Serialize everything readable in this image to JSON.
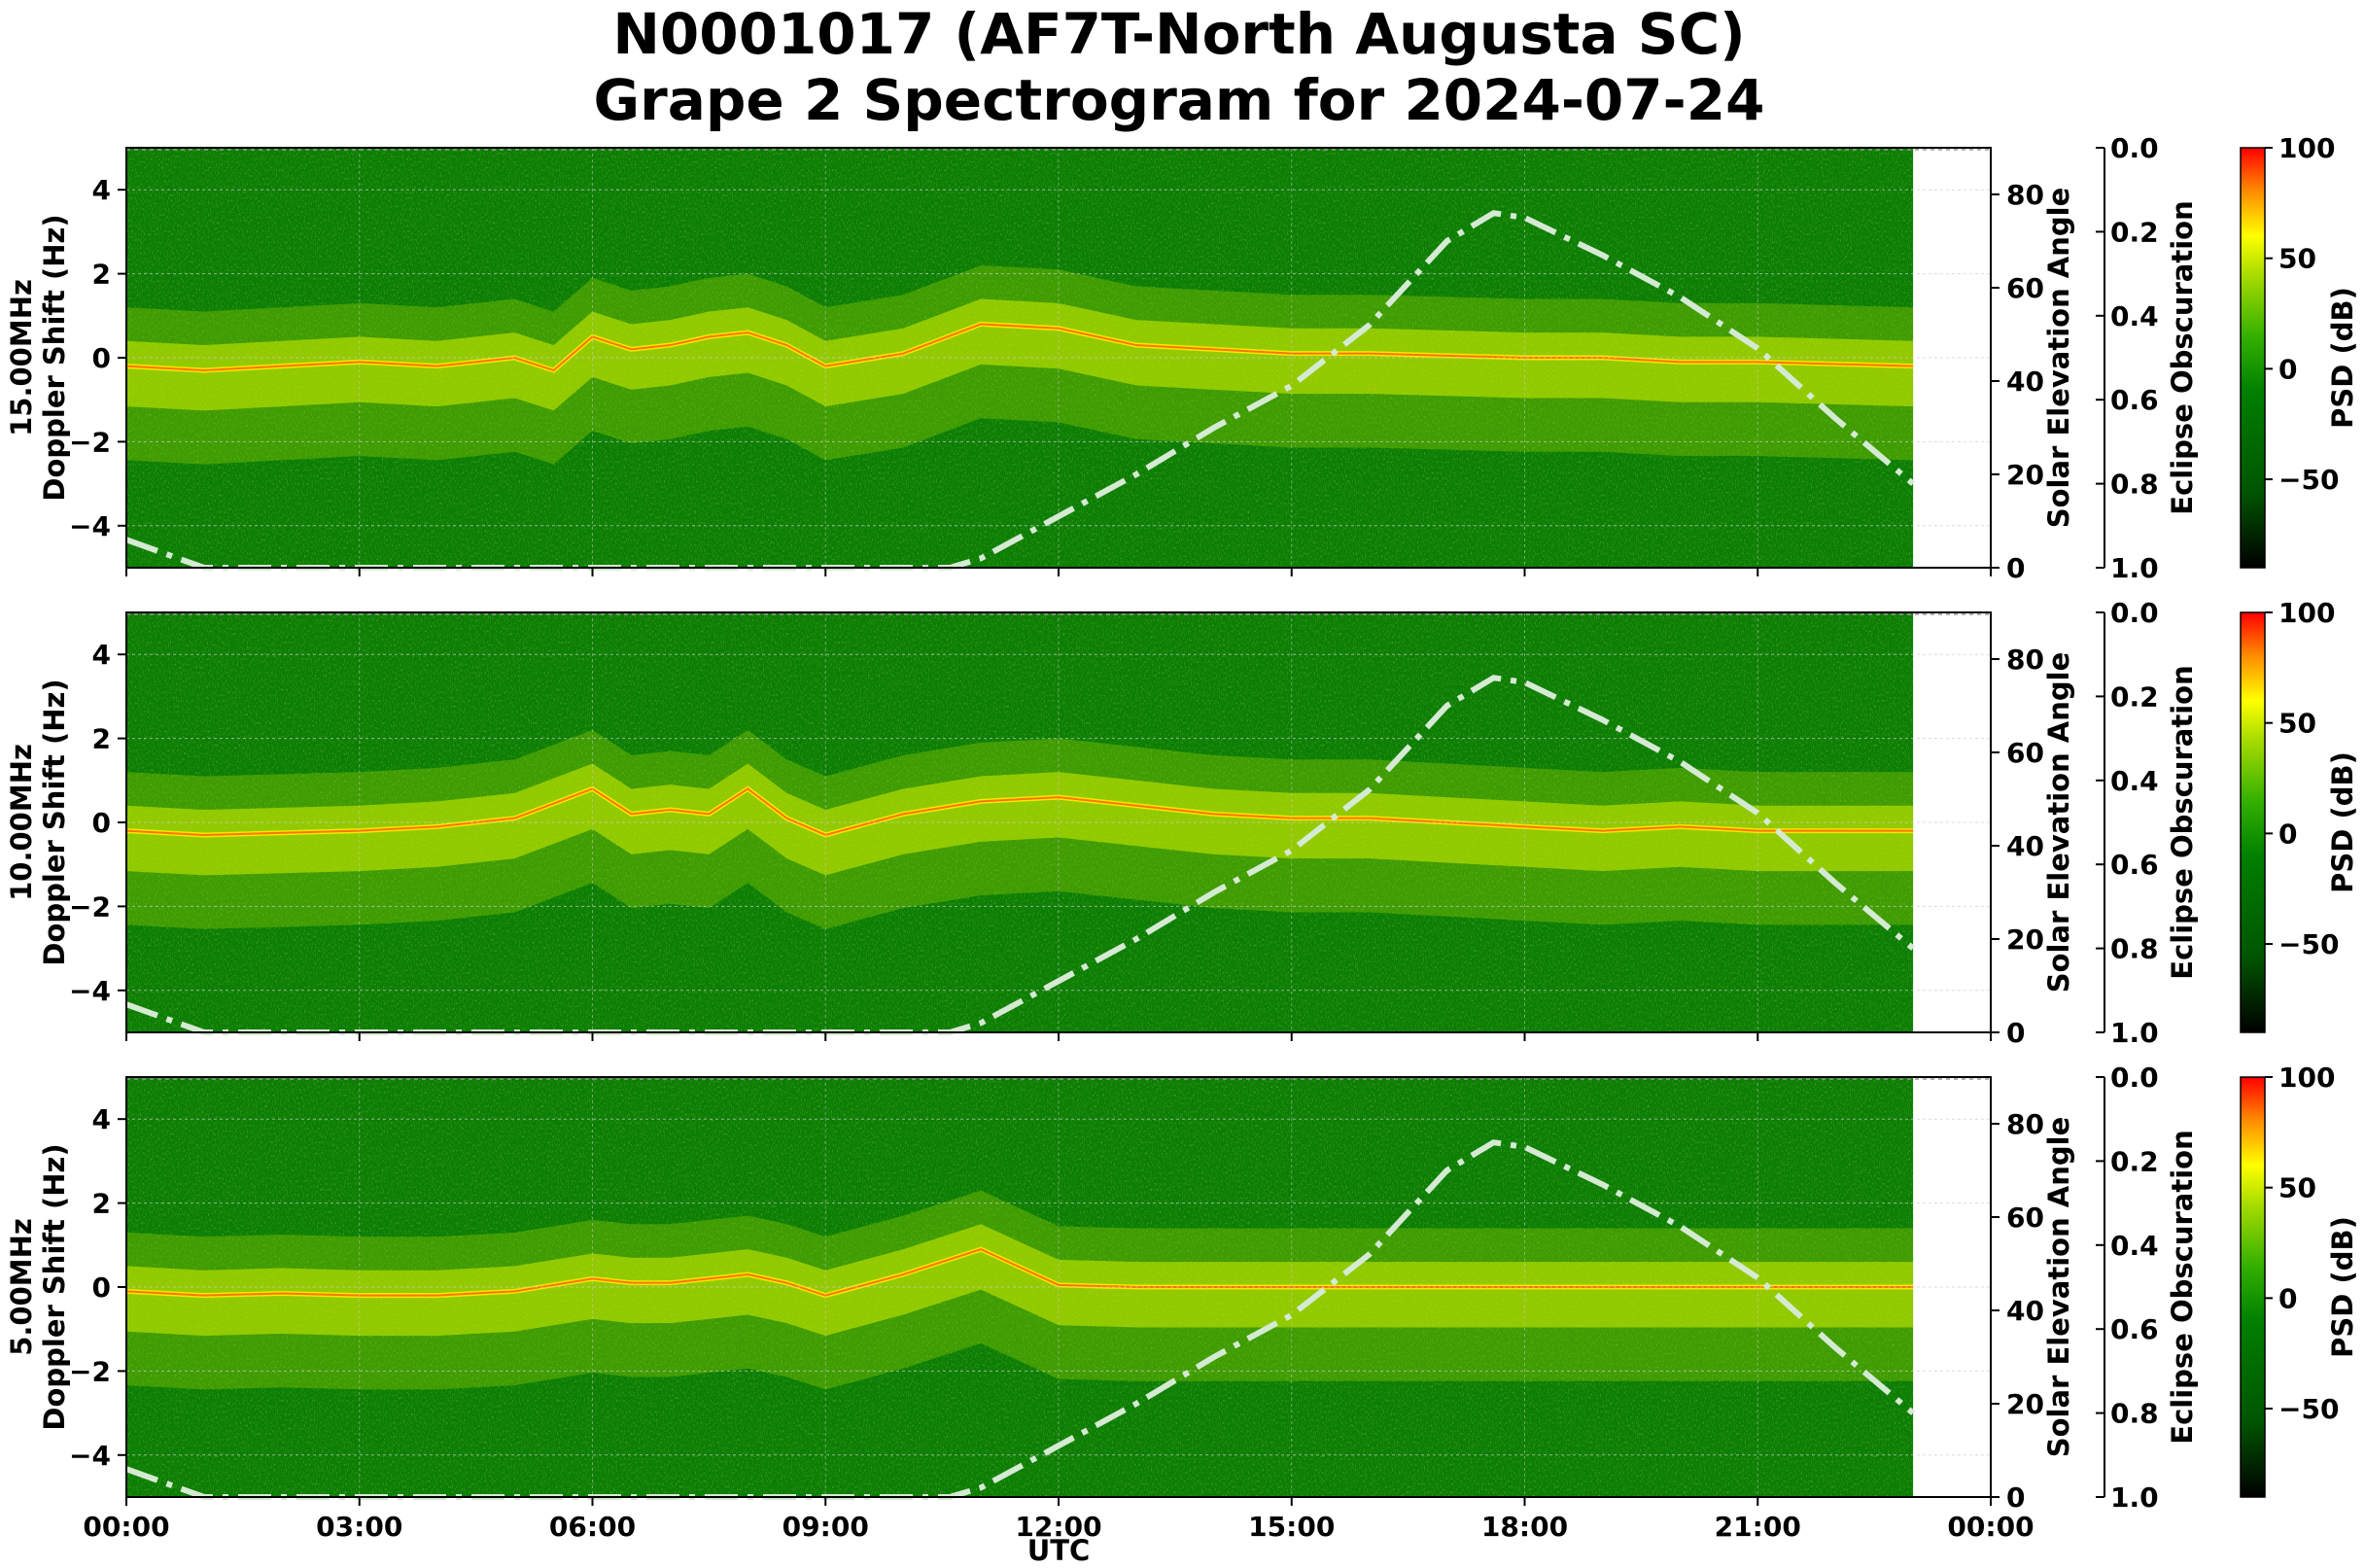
{
  "title_line1": "N0001017 (AF7T-North Augusta SC)",
  "title_line2": "Grape 2 Spectrogram for 2024-07-24",
  "chart_data": {
    "type": "heatmap",
    "xlabel": "UTC",
    "x_ticks": [
      "00:00",
      "03:00",
      "06:00",
      "09:00",
      "12:00",
      "15:00",
      "18:00",
      "21:00",
      "00:00"
    ],
    "x_range_hours": [
      0,
      24
    ],
    "data_end_hours": 23.0,
    "ylim_doppler": [
      -5,
      5
    ],
    "doppler_ticks": [
      4,
      2,
      0,
      -2,
      -4
    ],
    "ylim_elevation": [
      0,
      90
    ],
    "elevation_ticks": [
      80,
      60,
      40,
      20,
      0
    ],
    "ylabel_elevation": "Solar Elevation Angle",
    "ylim_obscuration": [
      1.0,
      0.0
    ],
    "obscuration_ticks": [
      "0.0",
      "0.2",
      "0.4",
      "0.6",
      "0.8",
      "1.0"
    ],
    "ylabel_obscuration": "Eclipse Obscuration",
    "colorbar_label": "PSD (dB)",
    "colorbar_ticks": [
      100,
      50,
      0,
      -50
    ],
    "colorbar_range": [
      -90,
      100
    ],
    "colormap": [
      "#000000",
      "#005500",
      "#008000",
      "#33b000",
      "#aadd00",
      "#ffff00",
      "#ff8800",
      "#ff0000"
    ],
    "solar_elevation_curve": {
      "style": "dash-dot",
      "color": "#d5ead2",
      "points": [
        [
          0,
          6
        ],
        [
          1,
          0
        ],
        [
          10.6,
          0
        ],
        [
          11,
          2
        ],
        [
          12,
          11
        ],
        [
          13,
          20
        ],
        [
          14,
          30
        ],
        [
          15,
          39
        ],
        [
          16,
          52
        ],
        [
          17,
          70
        ],
        [
          17.6,
          76
        ],
        [
          18,
          75
        ],
        [
          19,
          67
        ],
        [
          20,
          58
        ],
        [
          21,
          47
        ],
        [
          22,
          32
        ],
        [
          23,
          18
        ]
      ]
    },
    "panels": [
      {
        "name": "15.00MHz",
        "ylabel": "Doppler Shift (Hz)",
        "trace": [
          [
            0,
            -0.2
          ],
          [
            1,
            -0.3
          ],
          [
            2,
            -0.2
          ],
          [
            3,
            -0.1
          ],
          [
            4,
            -0.2
          ],
          [
            5,
            0.0
          ],
          [
            5.5,
            -0.3
          ],
          [
            6,
            0.5
          ],
          [
            6.5,
            0.2
          ],
          [
            7,
            0.3
          ],
          [
            7.5,
            0.5
          ],
          [
            8,
            0.6
          ],
          [
            8.5,
            0.3
          ],
          [
            9,
            -0.2
          ],
          [
            10,
            0.1
          ],
          [
            11,
            0.8
          ],
          [
            12,
            0.7
          ],
          [
            13,
            0.3
          ],
          [
            14,
            0.2
          ],
          [
            15,
            0.1
          ],
          [
            16,
            0.1
          ],
          [
            17,
            0.05
          ],
          [
            18,
            0.0
          ],
          [
            19,
            0.0
          ],
          [
            20,
            -0.1
          ],
          [
            21,
            -0.1
          ],
          [
            22,
            -0.15
          ],
          [
            23,
            -0.2
          ]
        ]
      },
      {
        "name": "10.00MHz",
        "ylabel": "Doppler Shift (Hz)",
        "trace": [
          [
            0,
            -0.2
          ],
          [
            1,
            -0.3
          ],
          [
            2,
            -0.25
          ],
          [
            3,
            -0.2
          ],
          [
            4,
            -0.1
          ],
          [
            5,
            0.1
          ],
          [
            6,
            0.8
          ],
          [
            6.5,
            0.2
          ],
          [
            7,
            0.3
          ],
          [
            7.5,
            0.2
          ],
          [
            8,
            0.8
          ],
          [
            8.5,
            0.1
          ],
          [
            9,
            -0.3
          ],
          [
            10,
            0.2
          ],
          [
            11,
            0.5
          ],
          [
            12,
            0.6
          ],
          [
            13,
            0.4
          ],
          [
            14,
            0.2
          ],
          [
            15,
            0.1
          ],
          [
            16,
            0.1
          ],
          [
            17,
            0.0
          ],
          [
            18,
            -0.1
          ],
          [
            19,
            -0.2
          ],
          [
            20,
            -0.1
          ],
          [
            21,
            -0.2
          ],
          [
            22,
            -0.2
          ],
          [
            23,
            -0.2
          ]
        ]
      },
      {
        "name": "5.00MHz",
        "ylabel": "Doppler Shift (Hz)",
        "trace": [
          [
            0,
            -0.1
          ],
          [
            1,
            -0.2
          ],
          [
            2,
            -0.15
          ],
          [
            3,
            -0.2
          ],
          [
            4,
            -0.2
          ],
          [
            5,
            -0.1
          ],
          [
            6,
            0.2
          ],
          [
            6.5,
            0.1
          ],
          [
            7,
            0.1
          ],
          [
            7.5,
            0.2
          ],
          [
            8,
            0.3
          ],
          [
            8.5,
            0.1
          ],
          [
            9,
            -0.2
          ],
          [
            10,
            0.3
          ],
          [
            11,
            0.9
          ],
          [
            12,
            0.05
          ],
          [
            13,
            0.0
          ],
          [
            14,
            0.0
          ],
          [
            15,
            0.0
          ],
          [
            16,
            0.0
          ],
          [
            17,
            0.0
          ],
          [
            18,
            0.0
          ],
          [
            19,
            0.0
          ],
          [
            20,
            0.0
          ],
          [
            21,
            0.0
          ],
          [
            22,
            0.0
          ],
          [
            23,
            0.0
          ]
        ]
      }
    ]
  }
}
